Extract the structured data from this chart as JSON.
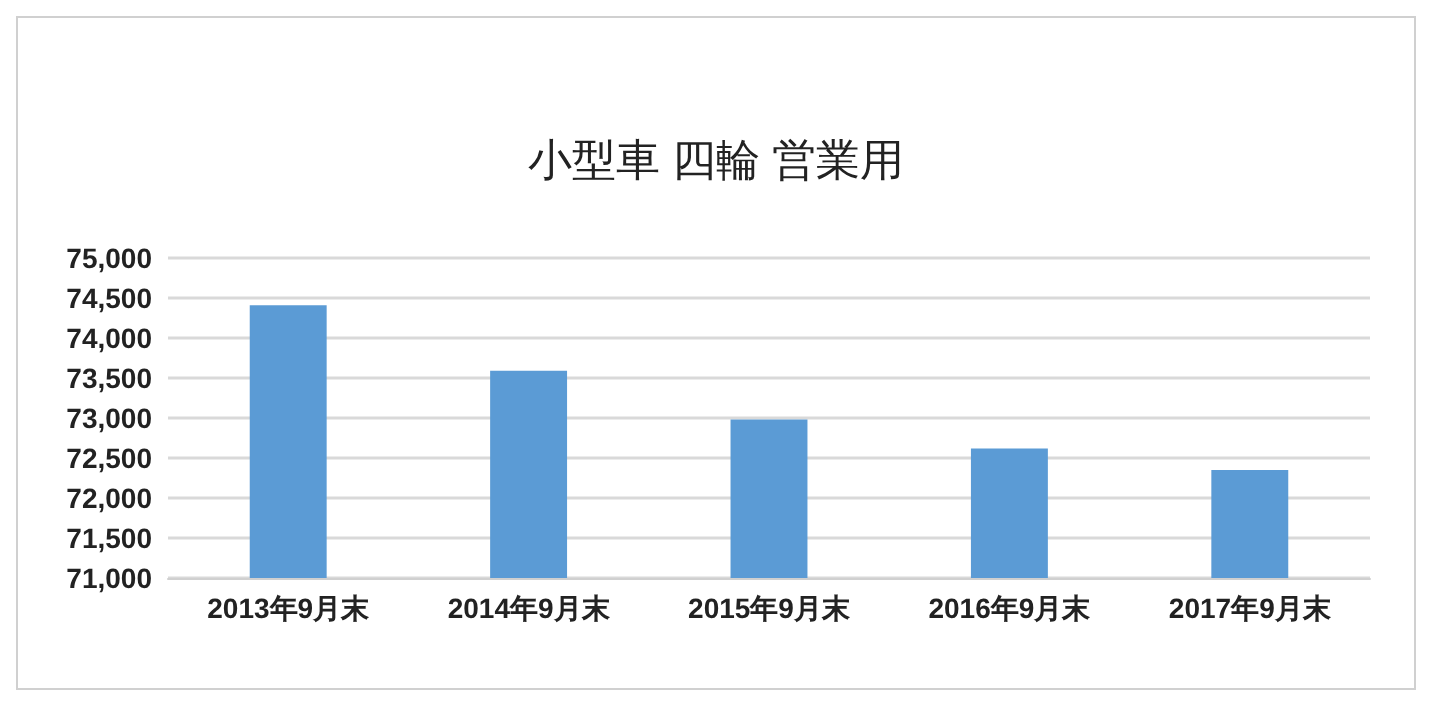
{
  "chart_data": {
    "type": "bar",
    "title": "小型車 四輪 営業用",
    "categories": [
      "2013年9月末",
      "2014年9月末",
      "2015年9月末",
      "2016年9月末",
      "2017年9月末"
    ],
    "values": [
      74410,
      73590,
      72980,
      72620,
      72350
    ],
    "color": "#5b9bd5",
    "ylim": [
      71000,
      75000
    ],
    "yticks": [
      {
        "value": 71000,
        "label": "71,000"
      },
      {
        "value": 71500,
        "label": "71,500"
      },
      {
        "value": 72000,
        "label": "72,000"
      },
      {
        "value": 72500,
        "label": "72,500"
      },
      {
        "value": 73000,
        "label": "73,000"
      },
      {
        "value": 73500,
        "label": "73,500"
      },
      {
        "value": 74000,
        "label": "74,000"
      },
      {
        "value": 74500,
        "label": "74,500"
      },
      {
        "value": 75000,
        "label": "75,000"
      }
    ],
    "grid": "y"
  }
}
